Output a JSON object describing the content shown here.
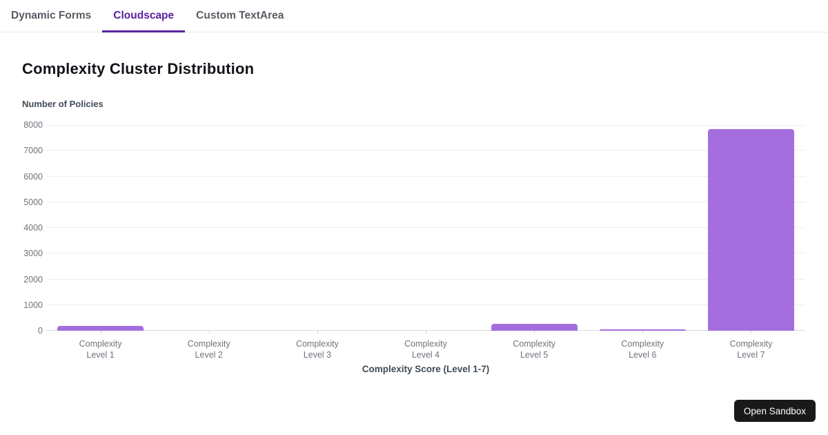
{
  "tab_bar": {
    "tabs": [
      {
        "label": "Dynamic Forms",
        "active": false
      },
      {
        "label": "Cloudscape",
        "active": true
      },
      {
        "label": "Custom TextArea",
        "active": false
      }
    ]
  },
  "chart_data": {
    "type": "bar",
    "title": "Complexity Cluster Distribution",
    "ylabel": "Number of Policies",
    "xlabel": "Complexity Score (Level 1-7)",
    "categories": [
      "Complexity Level 1",
      "Complexity Level 2",
      "Complexity Level 3",
      "Complexity Level 4",
      "Complexity Level 5",
      "Complexity Level 6",
      "Complexity Level 7"
    ],
    "values": [
      190,
      0,
      0,
      0,
      270,
      65,
      7850
    ],
    "ylim": [
      0,
      8000
    ],
    "ytick_step": 1000,
    "grid": true,
    "legend": false,
    "bar_color": "#a56ede"
  },
  "sandbox_button": {
    "label": "Open Sandbox"
  },
  "colors": {
    "accent_purple": "#59219d",
    "bar_purple": "#a56ede",
    "tab_inactive": "#575c64",
    "grid_line": "#eceef0",
    "axis_line": "#d6d9dc",
    "tick_label": "#6e747c",
    "axis_title_text": "#414b56"
  }
}
